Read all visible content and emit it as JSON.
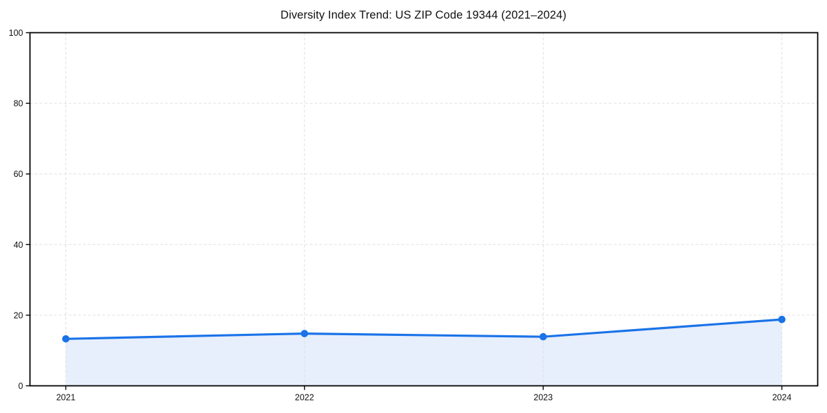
{
  "chart_data": {
    "type": "area",
    "title": "Diversity Index Trend: US ZIP Code 19344 (2021–2024)",
    "x": [
      2021,
      2022,
      2023,
      2024
    ],
    "series": [
      {
        "name": "Diversity Index",
        "values": [
          13.3,
          14.8,
          13.9,
          18.8
        ]
      }
    ],
    "xtick_labels": [
      "2021",
      "2022",
      "2023",
      "2024"
    ],
    "yticks": [
      0,
      20,
      40,
      60,
      80,
      100
    ],
    "ytick_labels": [
      "0",
      "20",
      "40",
      "60",
      "80",
      "100"
    ],
    "xlabel": "",
    "ylabel": "",
    "ylim": [
      0,
      100
    ],
    "x_margin_frac": 0.05,
    "grid": "dashed",
    "legend_position": "none",
    "marker": "circle",
    "colors": {
      "line": "#1a73e8",
      "marker": "#1a73e8",
      "fill": "#e7eefc",
      "grid": "#dfdfdf",
      "axis": "#000000",
      "text": "#111111",
      "background": "#ffffff"
    }
  }
}
